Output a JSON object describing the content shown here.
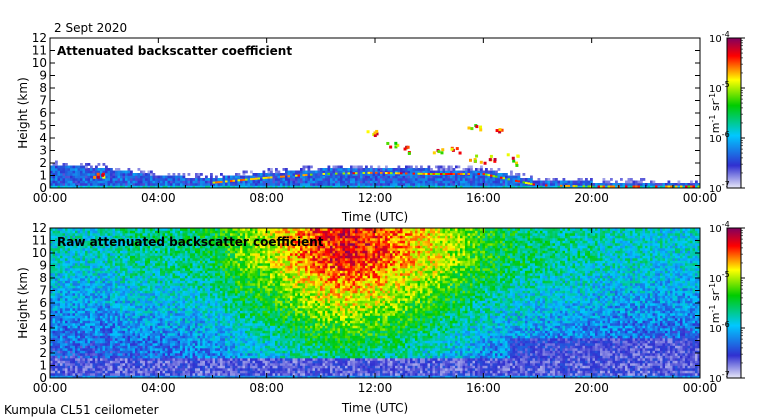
{
  "header": {
    "date": "2 Sept 2020"
  },
  "footer": {
    "instrument": "Kumpula CL51 ceilometer"
  },
  "chart_data": [
    {
      "type": "heatmap",
      "title": "Attenuated backscatter coefficient",
      "xlabel": "Time (UTC)",
      "ylabel": "Height (km)",
      "x_ticks": [
        "00:00",
        "04:00",
        "08:00",
        "12:00",
        "16:00",
        "20:00",
        "00:00"
      ],
      "y_ticks": [
        0,
        1,
        2,
        3,
        4,
        5,
        6,
        7,
        8,
        9,
        10,
        11,
        12
      ],
      "xlim_hours": [
        0,
        24
      ],
      "ylim": [
        0,
        12
      ],
      "colorbar": {
        "label_base": "m",
        "label_exp1": "-1",
        "label_mid": " sr",
        "label_exp2": "-1",
        "scale": "log",
        "tick_base": "10",
        "tick_exps": [
          "-7",
          "-6",
          "-5",
          "-4"
        ],
        "range": [
          1e-07,
          0.0001
        ],
        "colors": [
          "#e8e8f8",
          "#1010c0",
          "#00c8ff",
          "#00cc00",
          "#ffff00",
          "#ff0000",
          "#800060"
        ]
      },
      "features": {
        "boundary_layer_top_km": [
          [
            0,
            1.9
          ],
          [
            2,
            1.6
          ],
          [
            4,
            1.0
          ],
          [
            6,
            0.8
          ],
          [
            8,
            1.2
          ],
          [
            10,
            1.5
          ],
          [
            12,
            1.6
          ],
          [
            14,
            1.5
          ],
          [
            16,
            1.5
          ],
          [
            18,
            0.6
          ],
          [
            20,
            0.5
          ],
          [
            22,
            0.4
          ],
          [
            24,
            0.3
          ]
        ],
        "cloud_patches": [
          {
            "t": 1.8,
            "h": 1.1,
            "w": 0.5,
            "hh": 0.15
          },
          {
            "t": 11.9,
            "h": 4.5,
            "w": 0.5,
            "hh": 0.2
          },
          {
            "t": 12.6,
            "h": 3.5,
            "w": 0.4,
            "hh": 0.2
          },
          {
            "t": 13.3,
            "h": 3.1,
            "w": 0.5,
            "hh": 0.3
          },
          {
            "t": 14.3,
            "h": 2.9,
            "w": 0.4,
            "hh": 0.3
          },
          {
            "t": 14.9,
            "h": 3.1,
            "w": 0.4,
            "hh": 0.3
          },
          {
            "t": 15.6,
            "h": 5.0,
            "w": 0.5,
            "hh": 0.3
          },
          {
            "t": 15.9,
            "h": 2.4,
            "w": 1.0,
            "hh": 0.3
          },
          {
            "t": 16.5,
            "h": 4.6,
            "w": 0.3,
            "hh": 0.2
          },
          {
            "t": 17.0,
            "h": 2.3,
            "w": 0.6,
            "hh": 0.5
          }
        ]
      }
    },
    {
      "type": "heatmap",
      "title": "Raw attenuated backscatter coefficient",
      "xlabel": "Time (UTC)",
      "ylabel": "Height (km)",
      "x_ticks": [
        "00:00",
        "04:00",
        "08:00",
        "12:00",
        "16:00",
        "20:00",
        "00:00"
      ],
      "y_ticks": [
        0,
        1,
        2,
        3,
        4,
        5,
        6,
        7,
        8,
        9,
        10,
        11,
        12
      ],
      "xlim_hours": [
        0,
        24
      ],
      "ylim": [
        0,
        12
      ],
      "colorbar": {
        "label_base": "m",
        "label_exp1": "-1",
        "label_mid": " sr",
        "label_exp2": "-1",
        "scale": "log",
        "tick_base": "10",
        "tick_exps": [
          "-7",
          "-6",
          "-5",
          "-4"
        ],
        "range": [
          1e-07,
          0.0001
        ],
        "colors": [
          "#e8e8f8",
          "#1010c0",
          "#00c8ff",
          "#00cc00",
          "#ffff00",
          "#ff0000",
          "#800060"
        ]
      },
      "features": {
        "noise_intensity_by_hour": [
          0.35,
          0.35,
          0.35,
          0.4,
          0.4,
          0.42,
          0.45,
          0.55,
          0.6,
          0.7,
          0.78,
          0.82,
          0.78,
          0.72,
          0.66,
          0.58,
          0.5,
          0.45,
          0.42,
          0.4,
          0.38,
          0.36,
          0.35,
          0.34,
          0.34
        ]
      }
    }
  ]
}
